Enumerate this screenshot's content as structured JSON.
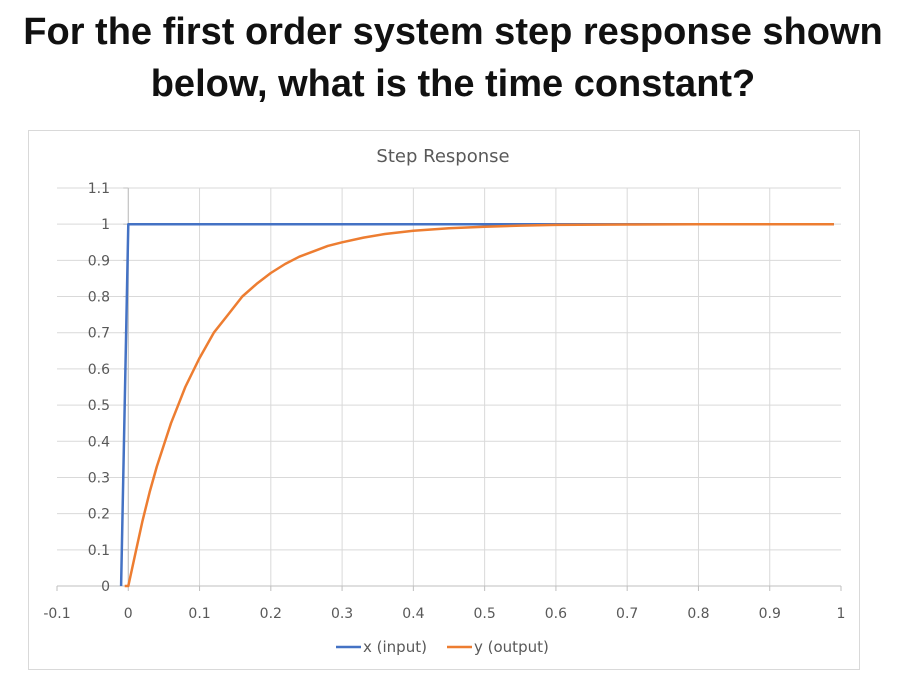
{
  "question": {
    "line1": "For the first order system step response shown",
    "line2": "below, what is the time constant?"
  },
  "chart_data": {
    "type": "line",
    "title": "Step Response",
    "xlabel": "",
    "ylabel": "",
    "xlim": [
      -0.1,
      1
    ],
    "ylim": [
      0,
      1.1
    ],
    "x_ticks": [
      -0.1,
      0,
      0.1,
      0.2,
      0.3,
      0.4,
      0.5,
      0.6,
      0.7,
      0.8,
      0.9,
      1
    ],
    "x_tick_labels": [
      "-0.1",
      "0",
      "0.1",
      "0.2",
      "0.3",
      "0.4",
      "0.5",
      "0.6",
      "0.7",
      "0.8",
      "0.9",
      "1"
    ],
    "y_ticks": [
      0,
      0.1,
      0.2,
      0.3,
      0.4,
      0.5,
      0.6,
      0.7,
      0.8,
      0.9,
      1,
      1.1
    ],
    "y_tick_labels": [
      "0",
      "0.1",
      "0.2",
      "0.3",
      "0.4",
      "0.5",
      "0.6",
      "0.7",
      "0.8",
      "0.9",
      "1",
      "1.1"
    ],
    "grid": true,
    "legend_position": "bottom",
    "series": [
      {
        "name": "x (input)",
        "color": "#4472C4",
        "points": [
          [
            -0.01,
            0
          ],
          [
            0,
            1
          ],
          [
            0.8,
            1
          ],
          [
            0.99,
            1
          ]
        ]
      },
      {
        "name": "y (output)",
        "color": "#ED7D31",
        "points": [
          [
            -0.005,
            0
          ],
          [
            0,
            0
          ],
          [
            0.01,
            0.09
          ],
          [
            0.02,
            0.18
          ],
          [
            0.03,
            0.26
          ],
          [
            0.04,
            0.33
          ],
          [
            0.05,
            0.39
          ],
          [
            0.06,
            0.45
          ],
          [
            0.07,
            0.5
          ],
          [
            0.08,
            0.55
          ],
          [
            0.09,
            0.59
          ],
          [
            0.1,
            0.63
          ],
          [
            0.12,
            0.7
          ],
          [
            0.14,
            0.75
          ],
          [
            0.16,
            0.8
          ],
          [
            0.18,
            0.835
          ],
          [
            0.2,
            0.865
          ],
          [
            0.22,
            0.89
          ],
          [
            0.24,
            0.91
          ],
          [
            0.26,
            0.925
          ],
          [
            0.28,
            0.94
          ],
          [
            0.3,
            0.95
          ],
          [
            0.33,
            0.963
          ],
          [
            0.36,
            0.973
          ],
          [
            0.4,
            0.982
          ],
          [
            0.45,
            0.989
          ],
          [
            0.5,
            0.993
          ],
          [
            0.55,
            0.996
          ],
          [
            0.6,
            0.998
          ],
          [
            0.7,
            0.999
          ],
          [
            0.8,
            1
          ],
          [
            0.99,
            1
          ]
        ]
      }
    ]
  }
}
